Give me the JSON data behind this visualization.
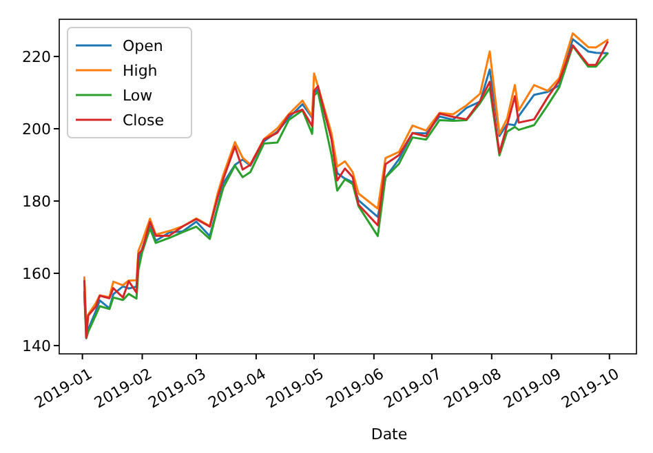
{
  "chart_data": {
    "type": "line",
    "xlabel": "Date",
    "x": [
      "2019-01-02",
      "2019-01-03",
      "2019-01-04",
      "2019-01-08",
      "2019-01-10",
      "2019-01-15",
      "2019-01-17",
      "2019-01-22",
      "2019-01-25",
      "2019-01-29",
      "2019-01-30",
      "2019-02-01",
      "2019-02-05",
      "2019-02-08",
      "2019-02-15",
      "2019-02-22",
      "2019-03-01",
      "2019-03-08",
      "2019-03-12",
      "2019-03-15",
      "2019-03-21",
      "2019-03-25",
      "2019-03-29",
      "2019-04-05",
      "2019-04-12",
      "2019-04-18",
      "2019-04-25",
      "2019-04-30",
      "2019-05-01",
      "2019-05-03",
      "2019-05-10",
      "2019-05-13",
      "2019-05-17",
      "2019-05-21",
      "2019-05-24",
      "2019-06-03",
      "2019-06-07",
      "2019-06-14",
      "2019-06-21",
      "2019-06-28",
      "2019-07-05",
      "2019-07-12",
      "2019-07-19",
      "2019-07-26",
      "2019-07-31",
      "2019-08-05",
      "2019-08-09",
      "2019-08-13",
      "2019-08-15",
      "2019-08-23",
      "2019-08-30",
      "2019-09-05",
      "2019-09-12",
      "2019-09-20",
      "2019-09-24",
      "2019-09-30"
    ],
    "series": [
      {
        "name": "Open",
        "color": "#1f77b4",
        "values": [
          154.9,
          144.0,
          144.5,
          149.6,
          152.5,
          150.3,
          154.2,
          156.4,
          155.8,
          156.3,
          163.3,
          166.9,
          172.9,
          169.0,
          171.3,
          171.6,
          174.3,
          170.3,
          178.3,
          184.9,
          190.0,
          191.5,
          189.8,
          196.5,
          199.2,
          203.1,
          206.8,
          203.1,
          209.9,
          210.9,
          197.4,
          187.7,
          186.2,
          185.2,
          180.2,
          175.6,
          186.5,
          191.6,
          198.8,
          198.7,
          203.4,
          202.5,
          205.8,
          207.5,
          216.4,
          198.0,
          201.3,
          201.0,
          203.5,
          209.4,
          210.2,
          212.0,
          224.8,
          221.4,
          221.0,
          220.9
        ]
      },
      {
        "name": "High",
        "color": "#ff7f0e",
        "values": [
          158.9,
          145.7,
          148.6,
          151.8,
          153.9,
          153.4,
          157.7,
          156.7,
          158.0,
          158.1,
          166.2,
          168.9,
          175.1,
          170.7,
          171.7,
          173.0,
          175.2,
          173.1,
          182.0,
          187.3,
          196.3,
          192.0,
          190.1,
          197.1,
          200.1,
          204.1,
          207.8,
          203.4,
          215.3,
          211.8,
          198.8,
          189.5,
          191.0,
          188.0,
          182.1,
          177.9,
          191.9,
          193.6,
          200.9,
          199.5,
          204.4,
          204.0,
          206.5,
          209.7,
          221.4,
          198.6,
          202.8,
          212.1,
          205.1,
          212.1,
          210.5,
          214.0,
          226.4,
          222.6,
          222.5,
          224.6
        ]
      },
      {
        "name": "Low",
        "color": "#2ca02c",
        "values": [
          154.2,
          142.0,
          143.8,
          148.5,
          150.9,
          150.1,
          153.3,
          152.6,
          154.3,
          153.0,
          160.9,
          165.9,
          172.4,
          168.4,
          169.8,
          171.4,
          172.9,
          169.5,
          178.0,
          183.7,
          189.8,
          186.6,
          188.0,
          195.9,
          196.2,
          202.5,
          205.1,
          198.6,
          209.2,
          210.2,
          192.8,
          182.9,
          186.0,
          184.7,
          178.6,
          170.3,
          186.5,
          190.3,
          197.6,
          197.0,
          202.4,
          202.2,
          202.4,
          207.1,
          211.3,
          192.6,
          199.2,
          200.5,
          199.7,
          201.0,
          206.5,
          211.5,
          222.9,
          217.2,
          217.2,
          220.8
        ]
      },
      {
        "name": "Close",
        "color": "#d62728",
        "values": [
          157.9,
          142.2,
          148.3,
          150.8,
          153.8,
          153.1,
          155.9,
          153.3,
          157.8,
          154.7,
          165.3,
          166.5,
          174.2,
          170.4,
          170.4,
          173.0,
          175.0,
          172.9,
          180.9,
          186.1,
          195.1,
          188.7,
          190.0,
          197.0,
          198.9,
          203.9,
          205.3,
          200.7,
          210.5,
          211.8,
          197.2,
          185.7,
          189.0,
          186.6,
          179.0,
          173.3,
          190.2,
          192.7,
          198.8,
          197.9,
          204.2,
          203.3,
          202.6,
          207.7,
          213.0,
          193.3,
          201.0,
          209.0,
          201.7,
          202.6,
          208.7,
          213.3,
          223.1,
          217.7,
          217.7,
          224.0
        ]
      }
    ],
    "xlim": [
      "2018-12-20",
      "2019-10-15"
    ],
    "xticks": [
      {
        "value": "2019-01-01",
        "label": "2019-01"
      },
      {
        "value": "2019-02-01",
        "label": "2019-02"
      },
      {
        "value": "2019-03-01",
        "label": "2019-03"
      },
      {
        "value": "2019-04-01",
        "label": "2019-04"
      },
      {
        "value": "2019-05-01",
        "label": "2019-05"
      },
      {
        "value": "2019-06-01",
        "label": "2019-06"
      },
      {
        "value": "2019-07-01",
        "label": "2019-07"
      },
      {
        "value": "2019-08-01",
        "label": "2019-08"
      },
      {
        "value": "2019-09-01",
        "label": "2019-09"
      },
      {
        "value": "2019-10-01",
        "label": "2019-10"
      }
    ],
    "ylim": [
      137.7,
      230.3
    ],
    "yticks": [
      140,
      160,
      180,
      200,
      220
    ],
    "legend": "top left",
    "grid": false,
    "line_style": "solid",
    "marker": "none"
  }
}
